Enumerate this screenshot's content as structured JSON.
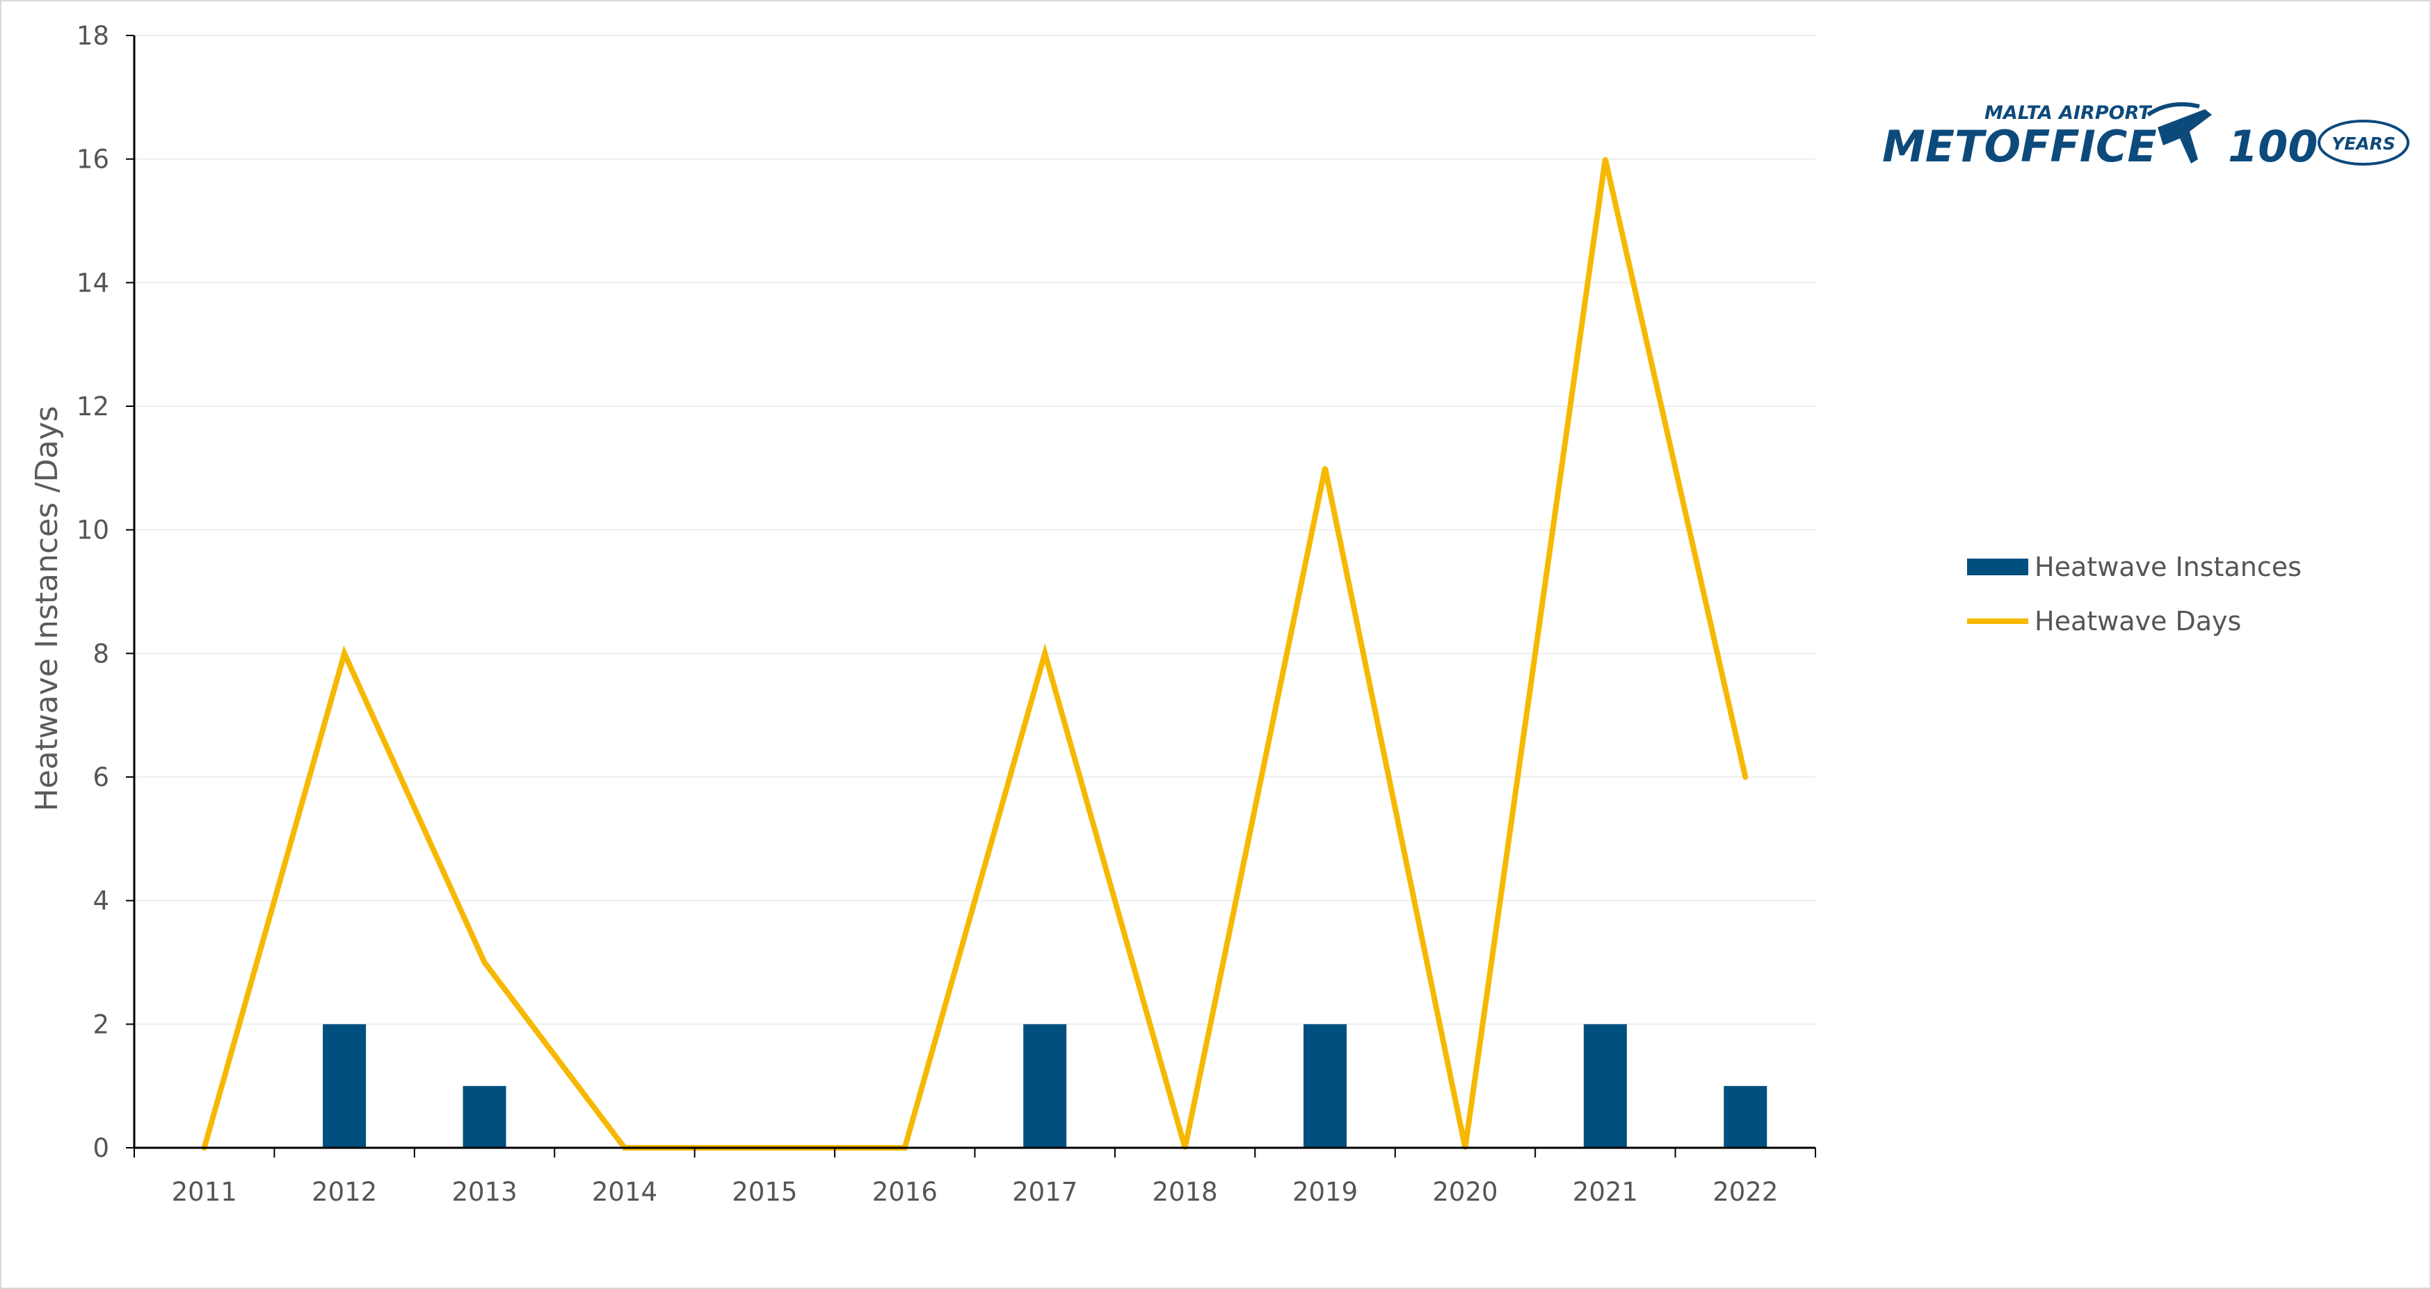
{
  "chart_data": {
    "type": "bar",
    "categories": [
      "2011",
      "2012",
      "2013",
      "2014",
      "2015",
      "2016",
      "2017",
      "2018",
      "2019",
      "2020",
      "2021",
      "2022"
    ],
    "series": [
      {
        "name": "Heatwave Instances",
        "type": "bar",
        "color": "#004f7f",
        "values": [
          0,
          2,
          1,
          0,
          0,
          0,
          2,
          0,
          2,
          0,
          2,
          1
        ]
      },
      {
        "name": "Heatwave Days",
        "type": "line",
        "color": "#f6b800",
        "values": [
          0,
          8,
          3,
          0,
          0,
          0,
          8,
          0,
          11,
          0,
          16,
          6
        ]
      }
    ],
    "ylabel": "Heatwave Instances /Days",
    "xlabel": "",
    "ylim": [
      0,
      18
    ],
    "yticks": [
      "0",
      "2",
      "4",
      "6",
      "8",
      "10",
      "12",
      "14",
      "16",
      "18"
    ],
    "grid": true,
    "legend_position": "right"
  },
  "logo": {
    "line1": "MALTA AIRPORT",
    "line2": "METOFFICE",
    "number": "100",
    "years": "YEARS"
  },
  "colors": {
    "accent": "#0d4a7c",
    "gridline": "#eeeeee",
    "axis": "#000000"
  }
}
